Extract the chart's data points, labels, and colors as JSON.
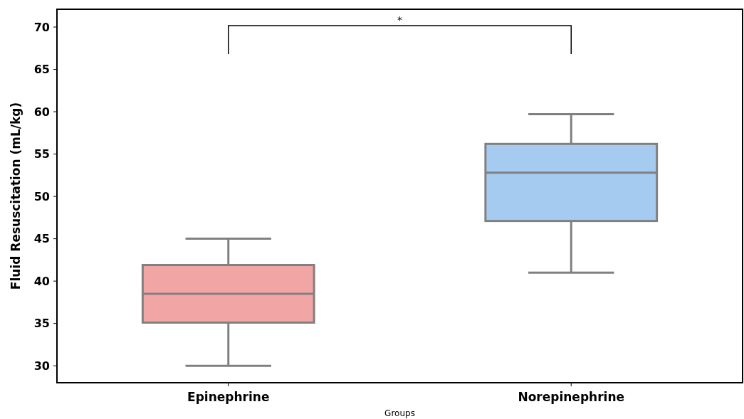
{
  "chart_data": {
    "type": "box",
    "categories": [
      "Epinephrine",
      "Norepinephrine"
    ],
    "boxes": [
      {
        "low": 30,
        "q1": 35.1,
        "median": 38.5,
        "q3": 41.9,
        "high": 45
      },
      {
        "low": 41,
        "q1": 47.1,
        "median": 52.8,
        "q3": 56.2,
        "high": 59.7
      }
    ],
    "colors": [
      "#f2a5a5",
      "#a5cbf0"
    ],
    "xlabel": "Groups",
    "ylabel": "Fluid Resuscitation (mL/kg)",
    "ylim": [
      28,
      72.1
    ],
    "yticks": [
      30,
      35,
      40,
      45,
      50,
      55,
      60,
      65,
      70
    ],
    "annotations": [
      "*"
    ],
    "grid": false
  }
}
